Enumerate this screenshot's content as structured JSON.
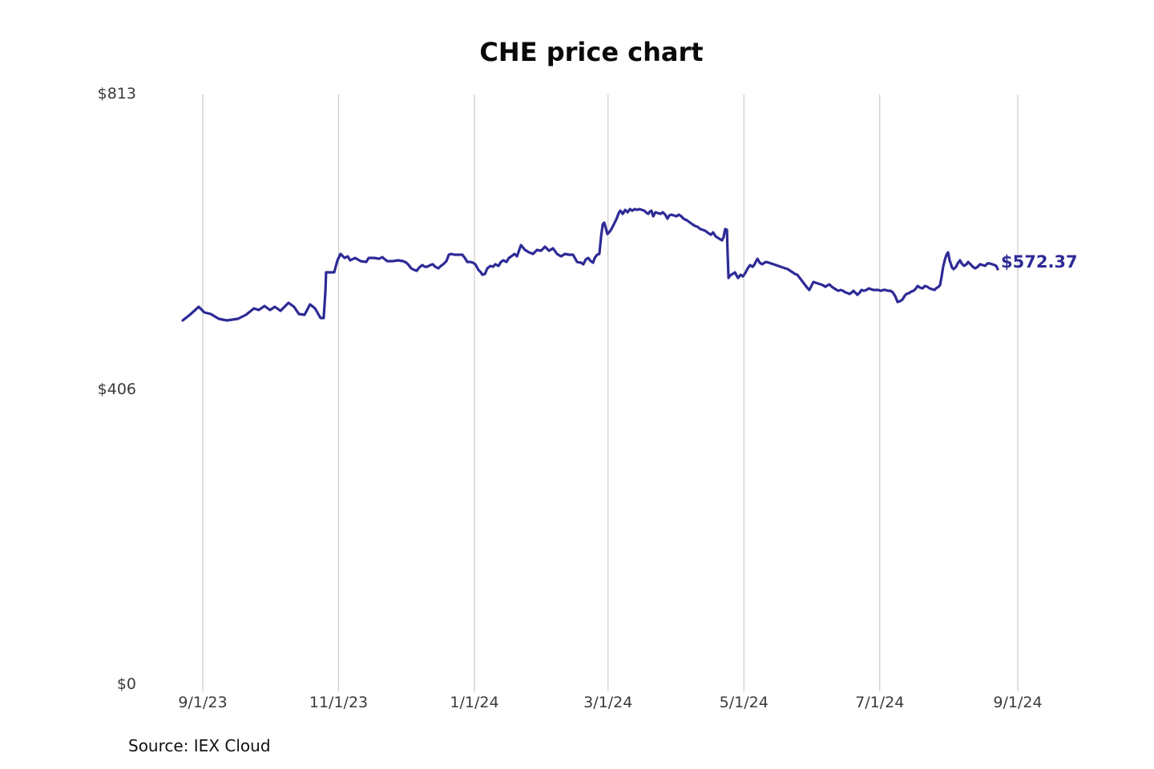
{
  "title": "CHE price chart",
  "source": "Source: IEX Cloud",
  "end_label": "$572.37",
  "colors": {
    "line": "#2d2a96",
    "grid": "#cbcbcb",
    "tick_text": "#3a3a3a",
    "title_text": "#0a0a0a",
    "background": "#ffffff"
  },
  "chart_data": {
    "type": "line",
    "title": "CHE price chart",
    "xlabel": "",
    "ylabel": "",
    "grid": "vertical-only",
    "legend": "none",
    "source": "IEX Cloud",
    "last_price": 572.37,
    "x_axis": {
      "day_span": 366,
      "tick_days": [
        9,
        70,
        131,
        191,
        252,
        313,
        375
      ],
      "tick_labels": [
        "9/1/23",
        "11/1/23",
        "1/1/24",
        "3/1/24",
        "5/1/24",
        "7/1/24",
        "9/1/24"
      ]
    },
    "y_axis": {
      "range": [
        0,
        813
      ],
      "ticks": [
        0,
        406,
        813
      ],
      "tick_labels": [
        "$0",
        "$406",
        "$813"
      ]
    },
    "series": [
      {
        "name": "CHE",
        "points": [
          [
            0,
            501.9
          ],
          [
            3.2,
            509.6
          ],
          [
            7.2,
            520.7
          ],
          [
            9.7,
            513
          ],
          [
            12.6,
            510.7
          ],
          [
            16.2,
            504.1
          ],
          [
            19.8,
            501.9
          ],
          [
            24.8,
            504.1
          ],
          [
            28.4,
            509.6
          ],
          [
            32,
            518.5
          ],
          [
            34.2,
            516.3
          ],
          [
            36.7,
            521.8
          ],
          [
            39.2,
            516.3
          ],
          [
            41.4,
            520.7
          ],
          [
            43.9,
            515.2
          ],
          [
            47.5,
            526.2
          ],
          [
            50,
            520.7
          ],
          [
            52.2,
            510.7
          ],
          [
            54.7,
            509.6
          ],
          [
            57.2,
            524
          ],
          [
            59.4,
            518.5
          ],
          [
            61.9,
            505.2
          ],
          [
            63.3,
            505.2
          ],
          [
            64.1,
            542.7
          ],
          [
            64.4,
            568.1
          ],
          [
            66.2,
            568.1
          ],
          [
            68,
            568.1
          ],
          [
            69.5,
            584.7
          ],
          [
            70.9,
            593.5
          ],
          [
            72.7,
            588
          ],
          [
            74.1,
            590.2
          ],
          [
            75.2,
            584.7
          ],
          [
            77.4,
            588
          ],
          [
            79.9,
            583.6
          ],
          [
            82.4,
            582.5
          ],
          [
            83.5,
            588
          ],
          [
            86,
            588
          ],
          [
            88.2,
            586.9
          ],
          [
            89.6,
            589.1
          ],
          [
            91.8,
            583.6
          ],
          [
            94.3,
            583.6
          ],
          [
            96.8,
            584.7
          ],
          [
            99,
            583.6
          ],
          [
            100.4,
            581.4
          ],
          [
            101.5,
            578.1
          ],
          [
            102.6,
            573.6
          ],
          [
            104,
            571.4
          ],
          [
            105.1,
            570.3
          ],
          [
            106.2,
            574.7
          ],
          [
            107.6,
            578.1
          ],
          [
            108.7,
            575.8
          ],
          [
            109.8,
            575.8
          ],
          [
            111.2,
            578.1
          ],
          [
            112.3,
            579.2
          ],
          [
            113.4,
            575.8
          ],
          [
            114.8,
            573.6
          ],
          [
            115.9,
            576.9
          ],
          [
            117,
            579.2
          ],
          [
            118.4,
            583.6
          ],
          [
            119.5,
            592.4
          ],
          [
            120.6,
            593.5
          ],
          [
            122,
            592.4
          ],
          [
            123.1,
            592.4
          ],
          [
            124.2,
            592.4
          ],
          [
            125.6,
            592.4
          ],
          [
            126.7,
            588
          ],
          [
            127.8,
            582.5
          ],
          [
            129.2,
            582.5
          ],
          [
            130.3,
            581.4
          ],
          [
            131.4,
            579.2
          ],
          [
            132.8,
            571.4
          ],
          [
            133.9,
            568.1
          ],
          [
            134.6,
            564.8
          ],
          [
            135.7,
            565.9
          ],
          [
            136.8,
            573.6
          ],
          [
            138.2,
            576.9
          ],
          [
            139.3,
            575.8
          ],
          [
            140.4,
            579.2
          ],
          [
            141.8,
            576.9
          ],
          [
            142.9,
            582.5
          ],
          [
            144,
            584.7
          ],
          [
            145.4,
            582.5
          ],
          [
            146.5,
            588
          ],
          [
            147.6,
            590.2
          ],
          [
            149,
            593.5
          ],
          [
            150.1,
            590.2
          ],
          [
            151.9,
            605.6
          ],
          [
            153.7,
            599
          ],
          [
            155.5,
            595.7
          ],
          [
            157.3,
            593.5
          ],
          [
            159.1,
            599
          ],
          [
            160.9,
            597.9
          ],
          [
            162.7,
            603.4
          ],
          [
            164.5,
            597.9
          ],
          [
            166.3,
            601.2
          ],
          [
            168.1,
            593.5
          ],
          [
            169.9,
            590.2
          ],
          [
            171.7,
            593.5
          ],
          [
            173.5,
            592.4
          ],
          [
            175.3,
            592.4
          ],
          [
            177.1,
            582.5
          ],
          [
            178.9,
            581.4
          ],
          [
            179.9,
            579.2
          ],
          [
            181,
            585.8
          ],
          [
            182.1,
            588
          ],
          [
            183.2,
            583.6
          ],
          [
            184.3,
            581.4
          ],
          [
            185,
            588
          ],
          [
            186.1,
            592.4
          ],
          [
            187.1,
            593.5
          ],
          [
            187.9,
            617.7
          ],
          [
            188.6,
            634.3
          ],
          [
            189.3,
            636.5
          ],
          [
            190,
            628.8
          ],
          [
            190.7,
            621
          ],
          [
            191.5,
            623.2
          ],
          [
            192.5,
            627.7
          ],
          [
            193.6,
            634.3
          ],
          [
            194.7,
            640.9
          ],
          [
            195.8,
            649.7
          ],
          [
            196.5,
            653
          ],
          [
            197.6,
            648.6
          ],
          [
            198.7,
            654.1
          ],
          [
            199.8,
            650.8
          ],
          [
            200.8,
            655.2
          ],
          [
            201.9,
            653
          ],
          [
            203,
            655.2
          ],
          [
            204.1,
            654.1
          ],
          [
            205.1,
            655.2
          ],
          [
            206.2,
            654.1
          ],
          [
            207.3,
            653
          ],
          [
            208.4,
            649.7
          ],
          [
            209.1,
            648.6
          ],
          [
            209.8,
            651.9
          ],
          [
            210.5,
            653
          ],
          [
            211.3,
            645.3
          ],
          [
            212.3,
            650.8
          ],
          [
            213.4,
            649.7
          ],
          [
            214.5,
            648.6
          ],
          [
            215.6,
            650.8
          ],
          [
            216.7,
            647.5
          ],
          [
            217.7,
            642
          ],
          [
            218.5,
            646.4
          ],
          [
            219.5,
            647.5
          ],
          [
            220.6,
            646.4
          ],
          [
            221.7,
            645.3
          ],
          [
            222.8,
            647.5
          ],
          [
            223.9,
            645.3
          ],
          [
            224.9,
            642
          ],
          [
            226.4,
            639.8
          ],
          [
            227.4,
            637.6
          ],
          [
            228.9,
            634.3
          ],
          [
            230,
            632.1
          ],
          [
            231.1,
            631
          ],
          [
            232.5,
            627.7
          ],
          [
            233.6,
            626.6
          ],
          [
            234.6,
            625.5
          ],
          [
            236.1,
            622.1
          ],
          [
            237.2,
            619.9
          ],
          [
            238.2,
            623.2
          ],
          [
            239.3,
            617.7
          ],
          [
            240.4,
            615.5
          ],
          [
            241.5,
            613.3
          ],
          [
            242.2,
            612.2
          ],
          [
            242.9,
            616.6
          ],
          [
            243.6,
            627.7
          ],
          [
            244.4,
            626.6
          ],
          [
            244.7,
            595.7
          ],
          [
            245.1,
            560.4
          ],
          [
            245.8,
            563.7
          ],
          [
            246.9,
            565.9
          ],
          [
            248,
            568.1
          ],
          [
            248.7,
            563.7
          ],
          [
            249.4,
            560.4
          ],
          [
            250.5,
            564.8
          ],
          [
            251.6,
            562.6
          ],
          [
            252.6,
            567
          ],
          [
            253.7,
            573.6
          ],
          [
            254.8,
            578.1
          ],
          [
            255.9,
            575.8
          ],
          [
            256.6,
            578.1
          ],
          [
            257.3,
            582.5
          ],
          [
            258.1,
            586.9
          ],
          [
            259.1,
            581.4
          ],
          [
            260.2,
            579.2
          ],
          [
            261.3,
            581.4
          ],
          [
            262,
            582.5
          ],
          [
            263.1,
            581.4
          ],
          [
            264.2,
            580.3
          ],
          [
            265.3,
            579.2
          ],
          [
            266.3,
            578.1
          ],
          [
            267.4,
            577
          ],
          [
            268.5,
            575.8
          ],
          [
            269.6,
            574.7
          ],
          [
            270.6,
            573.6
          ],
          [
            271.7,
            572.5
          ],
          [
            272.8,
            570.3
          ],
          [
            273.9,
            568.1
          ],
          [
            275,
            565.9
          ],
          [
            276,
            564.8
          ],
          [
            277.1,
            560.4
          ],
          [
            278.2,
            556
          ],
          [
            279.3,
            551.6
          ],
          [
            280.4,
            547.1
          ],
          [
            281.4,
            543.8
          ],
          [
            282.5,
            550.5
          ],
          [
            283.2,
            554.9
          ],
          [
            284.3,
            553.8
          ],
          [
            285.4,
            552.7
          ],
          [
            286.5,
            551.6
          ],
          [
            287.5,
            550.5
          ],
          [
            288.6,
            548.2
          ],
          [
            289.7,
            550.5
          ],
          [
            290.4,
            551.6
          ],
          [
            291.5,
            548.2
          ],
          [
            292.6,
            546
          ],
          [
            293.7,
            543.8
          ],
          [
            294.4,
            542.7
          ],
          [
            295.5,
            543.8
          ],
          [
            296.5,
            542.7
          ],
          [
            297.6,
            540.5
          ],
          [
            298.7,
            539.4
          ],
          [
            299.4,
            538.3
          ],
          [
            300.5,
            540.5
          ],
          [
            301.2,
            542.7
          ],
          [
            302.3,
            539.4
          ],
          [
            303,
            537.2
          ],
          [
            304.1,
            540.5
          ],
          [
            304.8,
            543.8
          ],
          [
            305.9,
            542.7
          ],
          [
            307,
            543.8
          ],
          [
            308.1,
            546
          ],
          [
            309.1,
            544.9
          ],
          [
            310.2,
            543.8
          ],
          [
            311.3,
            543.8
          ],
          [
            312.4,
            543.8
          ],
          [
            313.5,
            542.7
          ],
          [
            314.6,
            543.8
          ],
          [
            315.6,
            543.8
          ],
          [
            316.7,
            542.7
          ],
          [
            317.8,
            542.7
          ],
          [
            318.9,
            540.5
          ],
          [
            320,
            535
          ],
          [
            321,
            527.3
          ],
          [
            322.1,
            528.4
          ],
          [
            323.2,
            530.6
          ],
          [
            324.3,
            536.1
          ],
          [
            325,
            538.3
          ],
          [
            326.1,
            539.4
          ],
          [
            327.2,
            541.6
          ],
          [
            328.2,
            542.7
          ],
          [
            329.3,
            546
          ],
          [
            330,
            549.4
          ],
          [
            331.1,
            547.1
          ],
          [
            332.2,
            546
          ],
          [
            333.3,
            549.4
          ],
          [
            334.4,
            548.2
          ],
          [
            335.4,
            546
          ],
          [
            336.5,
            544.9
          ],
          [
            337.6,
            543.8
          ],
          [
            338.3,
            546
          ],
          [
            339.4,
            548.2
          ],
          [
            340.1,
            550.5
          ],
          [
            340.8,
            562.6
          ],
          [
            341.5,
            575.8
          ],
          [
            342.3,
            585.8
          ],
          [
            343,
            592.4
          ],
          [
            343.7,
            595.7
          ],
          [
            344.4,
            584.7
          ],
          [
            345.5,
            574.7
          ],
          [
            346.2,
            572.5
          ],
          [
            347.3,
            575.8
          ],
          [
            348,
            580.3
          ],
          [
            349.1,
            584.7
          ],
          [
            349.8,
            580.3
          ],
          [
            350.9,
            577
          ],
          [
            352,
            579.2
          ],
          [
            352.7,
            582.5
          ],
          [
            353.8,
            579.2
          ],
          [
            354.8,
            575.8
          ],
          [
            355.9,
            573.6
          ],
          [
            357,
            575.8
          ],
          [
            358.1,
            579.2
          ],
          [
            359.2,
            578.1
          ],
          [
            360.3,
            577
          ],
          [
            361.4,
            580.3
          ],
          [
            362.4,
            580.3
          ],
          [
            363.5,
            579.2
          ],
          [
            364.6,
            578.1
          ],
          [
            365.3,
            577
          ],
          [
            366,
            572.37
          ]
        ]
      }
    ]
  }
}
